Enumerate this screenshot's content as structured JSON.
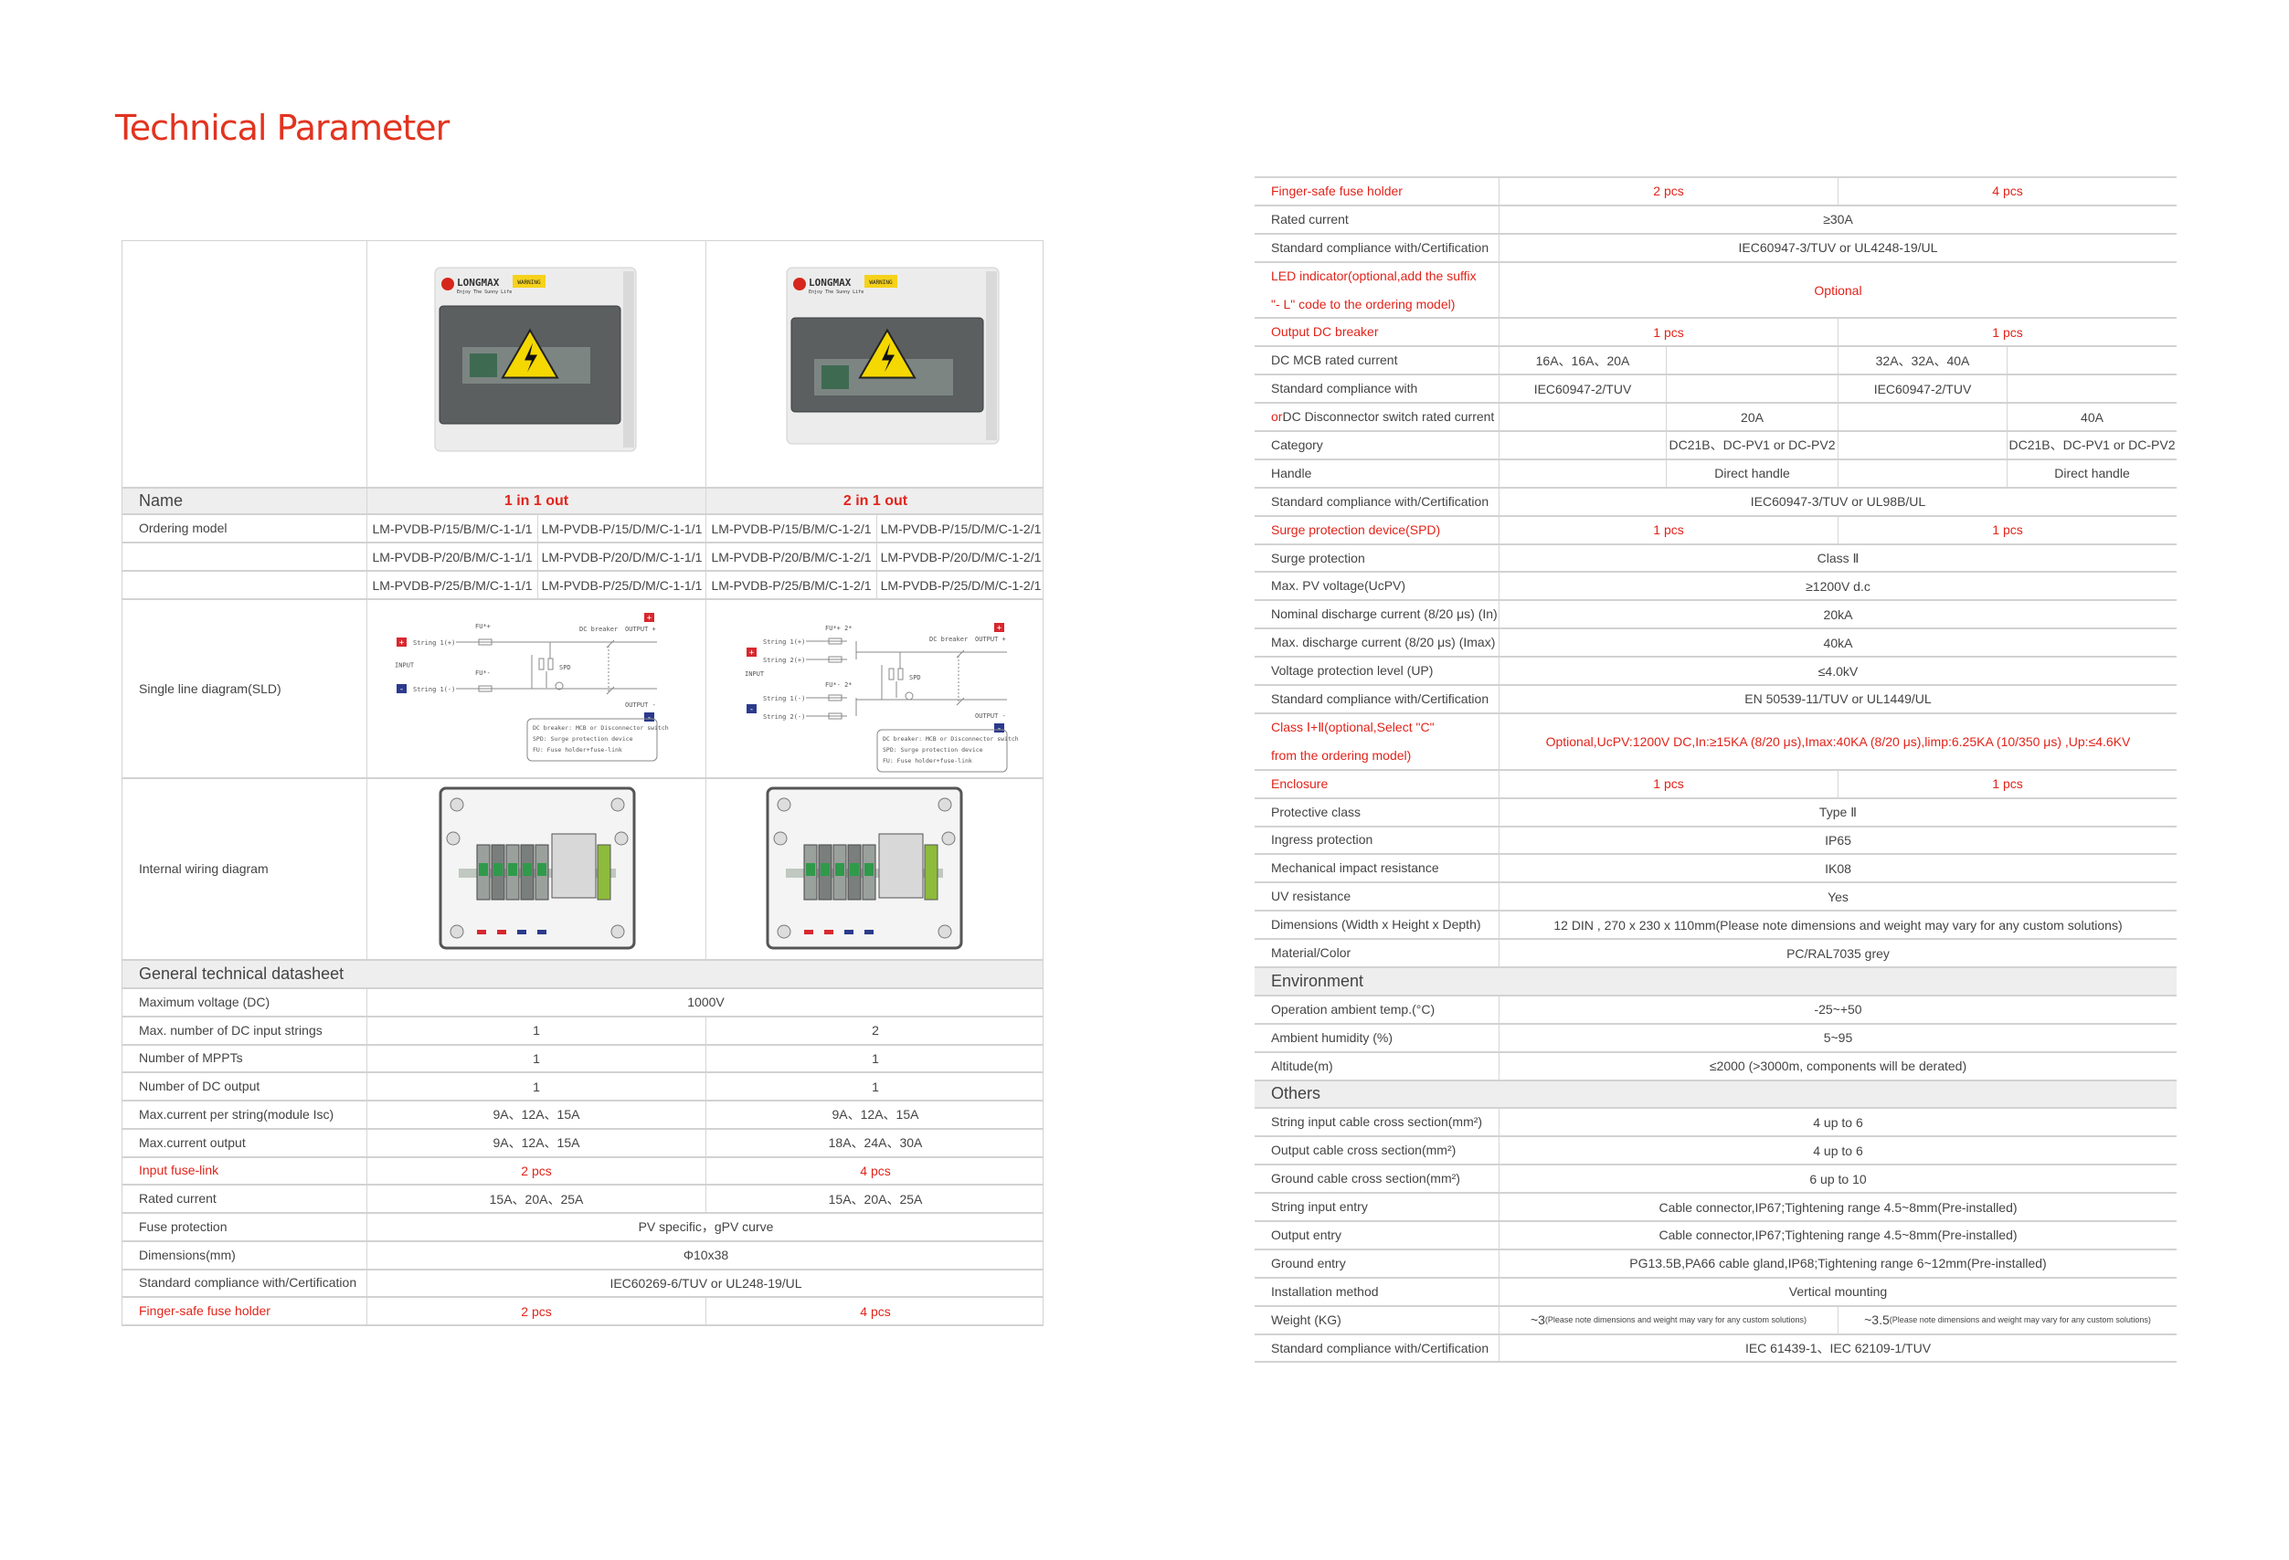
{
  "title": "Technical Parameter",
  "colors": {
    "accent": "#e2231a",
    "header_bg": "#eeeeee",
    "border": "#d2d2d2",
    "text": "#444444"
  },
  "brand": {
    "logo": "LONGMAX",
    "tagline": "Enjoy The Sunny Life",
    "warning": "WARNING"
  },
  "left_table": {
    "name_label": "Name",
    "variants": [
      "1 in 1 out",
      "2 in 1 out"
    ],
    "ordering_label": "Ordering model",
    "ordering_models": [
      [
        "LM-PVDB-P/15/B/M/C-1-1/1",
        "LM-PVDB-P/15/D/M/C-1-1/1",
        "LM-PVDB-P/15/B/M/C-1-2/1",
        "LM-PVDB-P/15/D/M/C-1-2/1"
      ],
      [
        "LM-PVDB-P/20/B/M/C-1-1/1",
        "LM-PVDB-P/20/D/M/C-1-1/1",
        "LM-PVDB-P/20/B/M/C-1-2/1",
        "LM-PVDB-P/20/D/M/C-1-2/1"
      ],
      [
        "LM-PVDB-P/25/B/M/C-1-1/1",
        "LM-PVDB-P/25/D/M/C-1-1/1",
        "LM-PVDB-P/25/B/M/C-1-2/1",
        "LM-PVDB-P/25/D/M/C-1-2/1"
      ]
    ],
    "sld_label": "Single line diagram(SLD)",
    "wiring_label": "Internal wiring diagram",
    "section": "General technical datasheet",
    "rows": [
      {
        "label": "Maximum voltage (DC)",
        "values": [
          "1000V"
        ]
      },
      {
        "label": "Max. number of DC input strings",
        "values": [
          "1",
          "2"
        ]
      },
      {
        "label": "Number of MPPTs",
        "values": [
          "1",
          "1"
        ]
      },
      {
        "label": "Number of DC output",
        "values": [
          "1",
          "1"
        ]
      },
      {
        "label": "Max.current per string(module Isc)",
        "values": [
          "9A、12A、15A",
          "9A、12A、15A"
        ]
      },
      {
        "label": "Max.current output",
        "values": [
          "9A、12A、15A",
          "18A、24A、30A"
        ]
      },
      {
        "label": "Input fuse-link",
        "values": [
          "2 pcs",
          "4 pcs"
        ],
        "red": true
      },
      {
        "label": "Rated current",
        "values": [
          "15A、20A、25A",
          "15A、20A、25A"
        ]
      },
      {
        "label": "Fuse protection",
        "values": [
          "PV specific，gPV curve"
        ]
      },
      {
        "label": "Dimensions(mm)",
        "values": [
          "Φ10x38"
        ]
      },
      {
        "label": "Standard compliance with/Certification",
        "values": [
          "IEC60269-6/TUV or UL248-19/UL"
        ]
      },
      {
        "label": "Finger-safe fuse holder",
        "values": [
          "2 pcs",
          "4 pcs"
        ],
        "red": true
      }
    ]
  },
  "sld": {
    "input": "INPUT",
    "dc_breaker": "DC breaker",
    "output_pos": "OUTPUT +",
    "output_neg": "OUTPUT -",
    "spd": "SPD",
    "legend": [
      "DC breaker: MCB or Disconnector switch",
      "SPD: Surge protection device",
      "FU: Fuse holder+fuse-link"
    ],
    "variants": [
      {
        "fu_pos": "FU*+",
        "fu_neg": "FU*-",
        "strings_pos": [
          "String 1(+)"
        ],
        "strings_neg": [
          "String 1(-)"
        ]
      },
      {
        "fu_pos": "FU*+ 2*",
        "fu_neg": "FU*- 2*",
        "strings_pos": [
          "String 1(+)",
          "String 2(+)"
        ],
        "strings_neg": [
          "String 1(-)",
          "String 2(-)"
        ]
      }
    ]
  },
  "right_table": {
    "rows": [
      {
        "label": "Finger-safe fuse holder",
        "values": [
          "2 pcs",
          "4 pcs"
        ],
        "red": true
      },
      {
        "label": "Rated current",
        "values": [
          "≥30A"
        ]
      },
      {
        "label": "Standard compliance with/Certification",
        "values": [
          "IEC60947-3/TUV or UL4248-19/UL"
        ]
      },
      {
        "label": "LED indicator(optional,add the suffix\n\"- L\" code to the ordering model)",
        "values": [
          "Optional"
        ],
        "red": true,
        "tall": true
      },
      {
        "label": "Output DC breaker",
        "values": [
          "1 pcs",
          "1 pcs"
        ],
        "red": true
      },
      {
        "label": "DC MCB rated current",
        "values": [
          "16A、16A、20A",
          "",
          "32A、32A、40A",
          ""
        ]
      },
      {
        "label": "Standard compliance with",
        "values": [
          "IEC60947-2/TUV",
          "",
          "IEC60947-2/TUV",
          ""
        ]
      },
      {
        "label_prefix": "or",
        "label": " DC Disconnector switch rated current",
        "values": [
          "",
          "20A",
          "",
          "40A"
        ]
      },
      {
        "label": "Category",
        "values": [
          "",
          "DC21B、DC-PV1 or DC-PV2",
          "",
          "DC21B、DC-PV1 or DC-PV2"
        ]
      },
      {
        "label": "Handle",
        "values": [
          "",
          "Direct handle",
          "",
          "Direct handle"
        ]
      },
      {
        "label": "Standard compliance with/Certification",
        "values": [
          "IEC60947-3/TUV or UL98B/UL"
        ]
      },
      {
        "label": "Surge protection device(SPD)",
        "values": [
          "1 pcs",
          "1 pcs"
        ],
        "red": true
      },
      {
        "label": "Surge protection",
        "values": [
          "Class Ⅱ"
        ]
      },
      {
        "label": "Max. PV voltage(UcPV)",
        "values": [
          "≥1200V d.c"
        ]
      },
      {
        "label": "Nominal discharge current (8/20 μs) (In)",
        "values": [
          "20kA"
        ]
      },
      {
        "label": "Max. discharge current (8/20 μs) (Imax)",
        "values": [
          "40kA"
        ]
      },
      {
        "label": "Voltage protection level (UP)",
        "values": [
          "≤4.0kV"
        ]
      },
      {
        "label": "Standard compliance with/Certification",
        "values": [
          "EN 50539-11/TUV or UL1449/UL"
        ]
      },
      {
        "label": "Class Ⅰ+Ⅱ(optional,Select \"C\"\nfrom the ordering model)",
        "values": [
          "Optional,UcPV:1200V DC,In:≥15KA (8/20 μs),Imax:40KA (8/20 μs),limp:6.25KA (10/350 μs) ,Up:≤4.6KV"
        ],
        "red": true,
        "tall": true
      },
      {
        "label": "Enclosure",
        "values": [
          "1 pcs",
          "1 pcs"
        ],
        "red": true
      },
      {
        "label": "Protective class",
        "values": [
          "Type Ⅱ"
        ]
      },
      {
        "label": "Ingress protection",
        "values": [
          "IP65"
        ]
      },
      {
        "label": "Mechanical impact resistance",
        "values": [
          "IK08"
        ]
      },
      {
        "label": "UV resistance",
        "values": [
          "Yes"
        ]
      },
      {
        "label": "Dimensions (Width x Height x Depth)",
        "values": [
          "12 DIN , 270 x 230 x 110mm(Please note dimensions and weight may vary for any custom solutions)"
        ]
      },
      {
        "label": "Material/Color",
        "values": [
          "PC/RAL7035 grey"
        ]
      },
      {
        "label": "Environment",
        "section": true
      },
      {
        "label": "Operation ambient temp.(°C)",
        "values": [
          "-25~+50"
        ]
      },
      {
        "label": "Ambient humidity (%)",
        "values": [
          "5~95"
        ]
      },
      {
        "label": "Altitude(m)",
        "values": [
          "≤2000 (>3000m, components will be derated)"
        ]
      },
      {
        "label": "Others",
        "section": true
      },
      {
        "label": "String input cable cross section(mm²)",
        "values": [
          "4 up to 6"
        ]
      },
      {
        "label": "Output cable cross section(mm²)",
        "values": [
          "4 up to 6"
        ]
      },
      {
        "label": "Ground cable cross section(mm²)",
        "values": [
          "6 up to 10"
        ]
      },
      {
        "label": "String input entry",
        "values": [
          "Cable connector,IP67;Tightening range 4.5~8mm(Pre-installed)"
        ]
      },
      {
        "label": "Output entry",
        "values": [
          "Cable connector,IP67;Tightening range 4.5~8mm(Pre-installed)"
        ]
      },
      {
        "label": "Ground entry",
        "values": [
          "PG13.5B,PA66 cable gland,IP68;Tightening range 6~12mm(Pre-installed)"
        ]
      },
      {
        "label": "Installation method",
        "values": [
          "Vertical mounting"
        ]
      },
      {
        "label": "Weight (KG)",
        "values": [
          "~3",
          "~3.5"
        ],
        "value_note": "(Please note dimensions and weight may vary for any custom solutions)"
      },
      {
        "label": "Standard compliance with/Certification",
        "values": [
          "IEC 61439-1、IEC 62109-1/TUV"
        ]
      }
    ]
  }
}
